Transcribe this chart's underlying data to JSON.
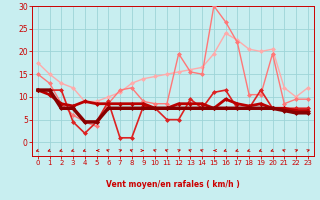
{
  "background_color": "#c8eef0",
  "grid_color": "#9ed4d8",
  "xlabel": "Vent moyen/en rafales ( km/h )",
  "xlim": [
    -0.5,
    23.5
  ],
  "ylim": [
    -3,
    30
  ],
  "yticks": [
    0,
    5,
    10,
    15,
    20,
    25,
    30
  ],
  "xticks": [
    0,
    1,
    2,
    3,
    4,
    5,
    6,
    7,
    8,
    9,
    10,
    11,
    12,
    13,
    14,
    15,
    16,
    17,
    18,
    19,
    20,
    21,
    22,
    23
  ],
  "lines": [
    {
      "x": [
        0,
        1,
        2,
        3,
        4,
        5,
        6,
        7,
        8,
        9,
        10,
        11,
        12,
        13,
        14,
        15,
        16,
        17,
        18,
        19,
        20,
        21,
        22,
        23
      ],
      "y": [
        17.5,
        15.0,
        13.0,
        12.0,
        9.0,
        9.0,
        10.0,
        11.0,
        13.0,
        14.0,
        14.5,
        15.0,
        15.5,
        16.0,
        16.5,
        19.5,
        24.0,
        22.5,
        20.5,
        20.0,
        20.5,
        12.0,
        10.0,
        12.0
      ],
      "color": "#ffaaaa",
      "linewidth": 1.0,
      "marker": "D",
      "markersize": 2.5,
      "zorder": 2
    },
    {
      "x": [
        0,
        1,
        2,
        3,
        4,
        5,
        6,
        7,
        8,
        9,
        10,
        11,
        12,
        13,
        14,
        15,
        16,
        17,
        18,
        19,
        20,
        21,
        22,
        23
      ],
      "y": [
        15.0,
        13.0,
        8.5,
        6.0,
        4.5,
        3.5,
        8.5,
        11.5,
        12.0,
        9.0,
        8.5,
        8.5,
        19.5,
        15.5,
        15.0,
        30.0,
        26.5,
        22.0,
        10.5,
        10.5,
        19.5,
        8.5,
        9.5,
        9.5
      ],
      "color": "#ff7777",
      "linewidth": 1.0,
      "marker": "D",
      "markersize": 2.5,
      "zorder": 3
    },
    {
      "x": [
        0,
        1,
        2,
        3,
        4,
        5,
        6,
        7,
        8,
        9,
        10,
        11,
        12,
        13,
        14,
        15,
        16,
        17,
        18,
        19,
        20,
        21,
        22,
        23
      ],
      "y": [
        11.5,
        11.5,
        11.5,
        4.5,
        2.0,
        4.5,
        9.0,
        1.0,
        1.0,
        8.0,
        7.5,
        5.0,
        5.0,
        9.5,
        7.5,
        11.0,
        11.5,
        7.5,
        7.5,
        11.5,
        7.5,
        7.5,
        7.5,
        7.5
      ],
      "color": "#dd2222",
      "linewidth": 1.2,
      "marker": "D",
      "markersize": 2.5,
      "zorder": 4
    },
    {
      "x": [
        0,
        1,
        2,
        3,
        4,
        5,
        6,
        7,
        8,
        9,
        10,
        11,
        12,
        13,
        14,
        15,
        16,
        17,
        18,
        19,
        20,
        21,
        22,
        23
      ],
      "y": [
        11.5,
        10.5,
        8.5,
        8.0,
        9.0,
        8.5,
        8.5,
        8.5,
        8.5,
        8.5,
        7.5,
        7.5,
        8.5,
        8.5,
        8.5,
        7.5,
        9.5,
        8.5,
        8.0,
        8.5,
        7.5,
        7.5,
        7.0,
        7.0
      ],
      "color": "#bb0000",
      "linewidth": 2.0,
      "marker": "D",
      "markersize": 2.5,
      "zorder": 5
    },
    {
      "x": [
        0,
        1,
        2,
        3,
        4,
        5,
        6,
        7,
        8,
        9,
        10,
        11,
        12,
        13,
        14,
        15,
        16,
        17,
        18,
        19,
        20,
        21,
        22,
        23
      ],
      "y": [
        11.5,
        11.5,
        7.5,
        7.5,
        4.5,
        4.5,
        7.5,
        7.5,
        7.5,
        7.5,
        7.5,
        7.5,
        7.5,
        7.5,
        7.5,
        7.5,
        7.5,
        7.5,
        7.5,
        7.5,
        7.5,
        7.0,
        6.5,
        6.5
      ],
      "color": "#880000",
      "linewidth": 2.5,
      "marker": "D",
      "markersize": 2.5,
      "zorder": 6
    }
  ],
  "wind_dirs": [
    225,
    225,
    225,
    225,
    225,
    270,
    315,
    45,
    315,
    90,
    315,
    315,
    45,
    315,
    315,
    270,
    225,
    225,
    225,
    225,
    225,
    315,
    45,
    45
  ]
}
